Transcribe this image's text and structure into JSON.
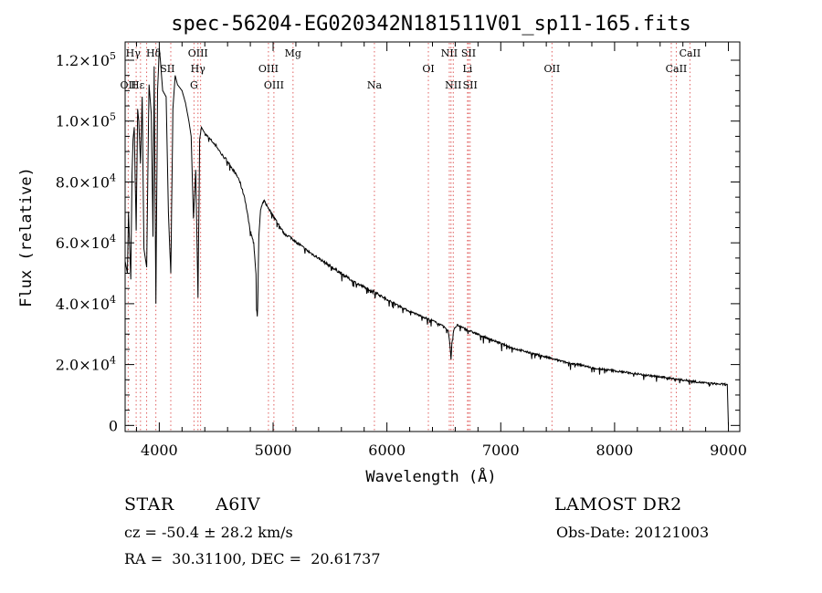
{
  "chart_data": {
    "type": "line",
    "title": "spec-56204-EG020342N181511V01_sp11-165.fits",
    "xlabel": "Wavelength (Å)",
    "ylabel": "Flux (relative)",
    "xlim": [
      3700,
      9100
    ],
    "ylim": [
      -2000,
      126000
    ],
    "x_ticks": [
      4000,
      5000,
      6000,
      7000,
      8000,
      9000
    ],
    "y_ticks": [
      {
        "value": 0,
        "mantissa": "0",
        "exp": ""
      },
      {
        "value": 20000,
        "mantissa": "2.0×10",
        "exp": "4"
      },
      {
        "value": 40000,
        "mantissa": "4.0×10",
        "exp": "4"
      },
      {
        "value": 60000,
        "mantissa": "6.0×10",
        "exp": "4"
      },
      {
        "value": 80000,
        "mantissa": "8.0×10",
        "exp": "4"
      },
      {
        "value": 100000,
        "mantissa": "1.0×10",
        "exp": "5"
      },
      {
        "value": 120000,
        "mantissa": "1.2×10",
        "exp": "5"
      }
    ],
    "grid": false,
    "line_color": "#000000",
    "marker_line_color": "#e06060",
    "series": [
      {
        "x": [
          3700,
          3720,
          3730,
          3750,
          3760,
          3770,
          3780,
          3797,
          3810,
          3820,
          3835,
          3850,
          3865,
          3889,
          3910,
          3930,
          3945,
          3955,
          3970,
          3985,
          4000,
          4010,
          4030,
          4060,
          4080,
          4101,
          4120,
          4140,
          4160,
          4200,
          4230,
          4260,
          4280,
          4300,
          4320,
          4340,
          4355,
          4370,
          4400,
          4450,
          4500,
          4550,
          4600,
          4650,
          4700,
          4750,
          4800,
          4830,
          4850,
          4855,
          4861,
          4867,
          4875,
          4890,
          4920,
          4950,
          5000,
          5050,
          5100,
          5150,
          5200,
          5300,
          5400,
          5500,
          5600,
          5700,
          5800,
          5890,
          5896,
          5900,
          5950,
          6000,
          6100,
          6200,
          6300,
          6400,
          6500,
          6540,
          6555,
          6563,
          6570,
          6590,
          6620,
          6700,
          6800,
          6900,
          7000,
          7100,
          7200,
          7300,
          7400,
          7500,
          7600,
          7700,
          7800,
          7900,
          8000,
          8100,
          8200,
          8300,
          8400,
          8500,
          8600,
          8700,
          8800,
          8900,
          8990,
          9000
        ],
        "y": [
          54000,
          50000,
          70000,
          48000,
          82000,
          94000,
          98000,
          64000,
          104000,
          100000,
          86000,
          108000,
          58000,
          52000,
          112000,
          102000,
          62000,
          118000,
          40000,
          110000,
          124000,
          120000,
          110000,
          108000,
          70000,
          50000,
          104000,
          115000,
          112000,
          110000,
          106000,
          100000,
          95000,
          68000,
          84000,
          42000,
          94000,
          98000,
          96000,
          94000,
          92000,
          89000,
          87000,
          84000,
          81000,
          75000,
          64000,
          60000,
          50000,
          38000,
          36000,
          44000,
          62000,
          71000,
          74000,
          72000,
          69000,
          66000,
          63000,
          62000,
          60500,
          57500,
          55000,
          52500,
          50000,
          47500,
          45500,
          44000,
          42000,
          44000,
          42500,
          41500,
          39500,
          37500,
          36000,
          34500,
          32500,
          31000,
          26000,
          22000,
          27000,
          32000,
          33000,
          31500,
          30000,
          28500,
          27000,
          25500,
          24500,
          23500,
          22500,
          21500,
          20500,
          20000,
          19000,
          18500,
          18000,
          17500,
          17000,
          16500,
          16000,
          15500,
          15000,
          14500,
          14000,
          13700,
          13500,
          0
        ]
      }
    ],
    "lines_top": [
      {
        "x": 3770,
        "label": "Hγ",
        "row": 0
      },
      {
        "x": 3950,
        "label": "Hδ",
        "row": 0
      },
      {
        "x": 4340,
        "label": "OIII",
        "row": 0
      },
      {
        "x": 5175,
        "label": "Mg",
        "row": 0
      },
      {
        "x": 6548,
        "label": "NII",
        "row": 0
      },
      {
        "x": 6717,
        "label": "SII",
        "row": 0
      },
      {
        "x": 8662,
        "label": "CaII",
        "row": 0
      },
      {
        "x": 4072,
        "label": "SII",
        "row": 1
      },
      {
        "x": 4340,
        "label": "Hγ",
        "row": 1
      },
      {
        "x": 4959,
        "label": "OIII",
        "row": 1
      },
      {
        "x": 6364,
        "label": "OI",
        "row": 1
      },
      {
        "x": 6708,
        "label": "Li",
        "row": 1
      },
      {
        "x": 7450,
        "label": "OII",
        "row": 1
      },
      {
        "x": 8542,
        "label": "CaII",
        "row": 1
      },
      {
        "x": 3727,
        "label": "OII",
        "row": 2
      },
      {
        "x": 3810,
        "label": "Hε",
        "row": 2
      },
      {
        "x": 4305,
        "label": "G",
        "row": 2
      },
      {
        "x": 5007,
        "label": "OIII",
        "row": 2
      },
      {
        "x": 5890,
        "label": "Na",
        "row": 2
      },
      {
        "x": 6583,
        "label": "NII",
        "row": 2
      },
      {
        "x": 6731,
        "label": "SII",
        "row": 2
      }
    ],
    "marker_lines_x": [
      3727,
      3797,
      3835,
      3889,
      3970,
      4101,
      4305,
      4340,
      4363,
      4959,
      5007,
      5175,
      5890,
      6364,
      6548,
      6563,
      6583,
      6708,
      6717,
      6731,
      7450,
      8498,
      8542,
      8662
    ]
  },
  "info": {
    "class_label": "STAR",
    "subclass": "A6IV",
    "survey": "LAMOST DR2",
    "cz": "cz = -50.4 ± 28.2 km/s",
    "obs_date": "Obs-Date: 20121003",
    "radec": "RA =  30.31100, DEC =  20.61737"
  }
}
